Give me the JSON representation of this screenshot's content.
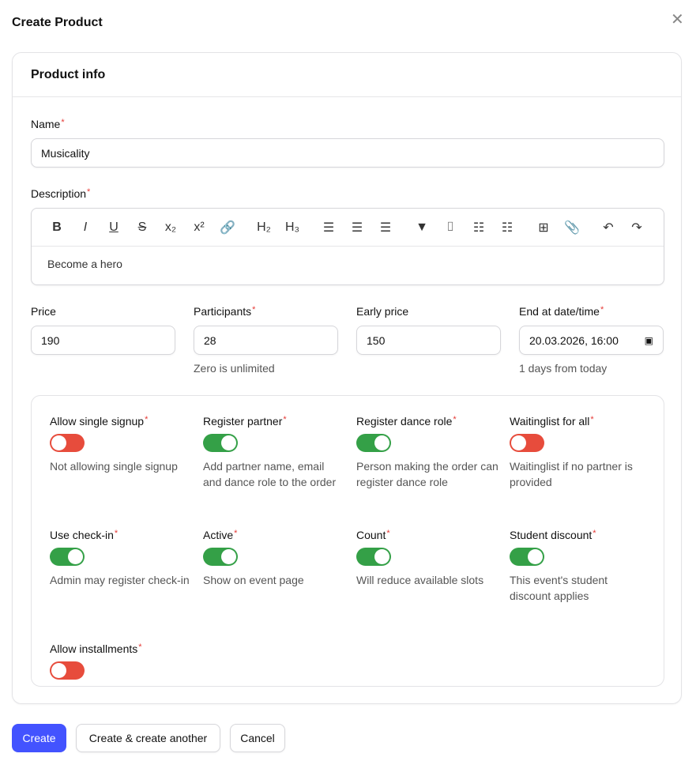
{
  "header": {
    "title": "Create Product",
    "close_icon": "close-icon"
  },
  "card": {
    "title": "Product info"
  },
  "name": {
    "label": "Name",
    "value": "Musicality"
  },
  "description": {
    "label": "Description",
    "value": "Become a hero",
    "toolbar": [
      {
        "icon": "bold-icon",
        "glyph": "B"
      },
      {
        "icon": "italic-icon",
        "glyph": "I"
      },
      {
        "icon": "underline-icon",
        "glyph": "U"
      },
      {
        "icon": "strikethrough-icon",
        "glyph": "S"
      },
      {
        "icon": "subscript-icon",
        "glyph": "x₂"
      },
      {
        "icon": "superscript-icon",
        "glyph": "x²"
      },
      {
        "icon": "link-icon",
        "glyph": "🔗"
      },
      {
        "icon": "heading2-icon",
        "glyph": "H₂"
      },
      {
        "icon": "heading3-icon",
        "glyph": "H₃"
      },
      {
        "icon": "align-left-icon",
        "glyph": "☰"
      },
      {
        "icon": "align-center-icon",
        "glyph": "☰"
      },
      {
        "icon": "align-right-icon",
        "glyph": "☰"
      },
      {
        "icon": "blockquote-icon",
        "glyph": "▼"
      },
      {
        "icon": "code-block-icon",
        "glyph": "⌷"
      },
      {
        "icon": "bullet-list-icon",
        "glyph": "☷"
      },
      {
        "icon": "ordered-list-icon",
        "glyph": "☷"
      },
      {
        "icon": "table-icon",
        "glyph": "⊞"
      },
      {
        "icon": "attach-icon",
        "glyph": "📎"
      },
      {
        "icon": "undo-icon",
        "glyph": "↶"
      },
      {
        "icon": "redo-icon",
        "glyph": "↷"
      }
    ]
  },
  "fields": [
    {
      "label": "Price",
      "required": false,
      "value": "190",
      "help": ""
    },
    {
      "label": "Participants",
      "required": true,
      "value": "28",
      "help": "Zero is unlimited"
    },
    {
      "label": "Early price",
      "required": false,
      "value": "150",
      "help": ""
    },
    {
      "label": "End at date/time",
      "required": true,
      "value": "20.03.2026, 16:00",
      "help": "1 days from today"
    }
  ],
  "toggles": [
    {
      "label": "Allow single signup",
      "on": false,
      "desc": "Not allowing single signup"
    },
    {
      "label": "Register partner",
      "on": true,
      "desc": "Add partner name, email and dance role to the order"
    },
    {
      "label": "Register dance role",
      "on": true,
      "desc": "Person making the order can register dance role"
    },
    {
      "label": "Waitinglist for all",
      "on": false,
      "desc": "Waitinglist if no partner is provided"
    },
    {
      "label": "Use check-in",
      "on": true,
      "desc": "Admin may register check-in"
    },
    {
      "label": "Active",
      "on": true,
      "desc": "Show on event page"
    },
    {
      "label": "Count",
      "on": true,
      "desc": "Will reduce available slots"
    },
    {
      "label": "Student discount",
      "on": true,
      "desc": "This event's student discount applies"
    },
    {
      "label": "Allow installments",
      "on": false,
      "desc": ""
    }
  ],
  "required_mark": "*",
  "colors": {
    "on": "#34a047",
    "off": "#e74c3c",
    "primary": "#4353ff"
  },
  "actions": {
    "create": "Create",
    "create_another": "Create & create another",
    "cancel": "Cancel"
  }
}
